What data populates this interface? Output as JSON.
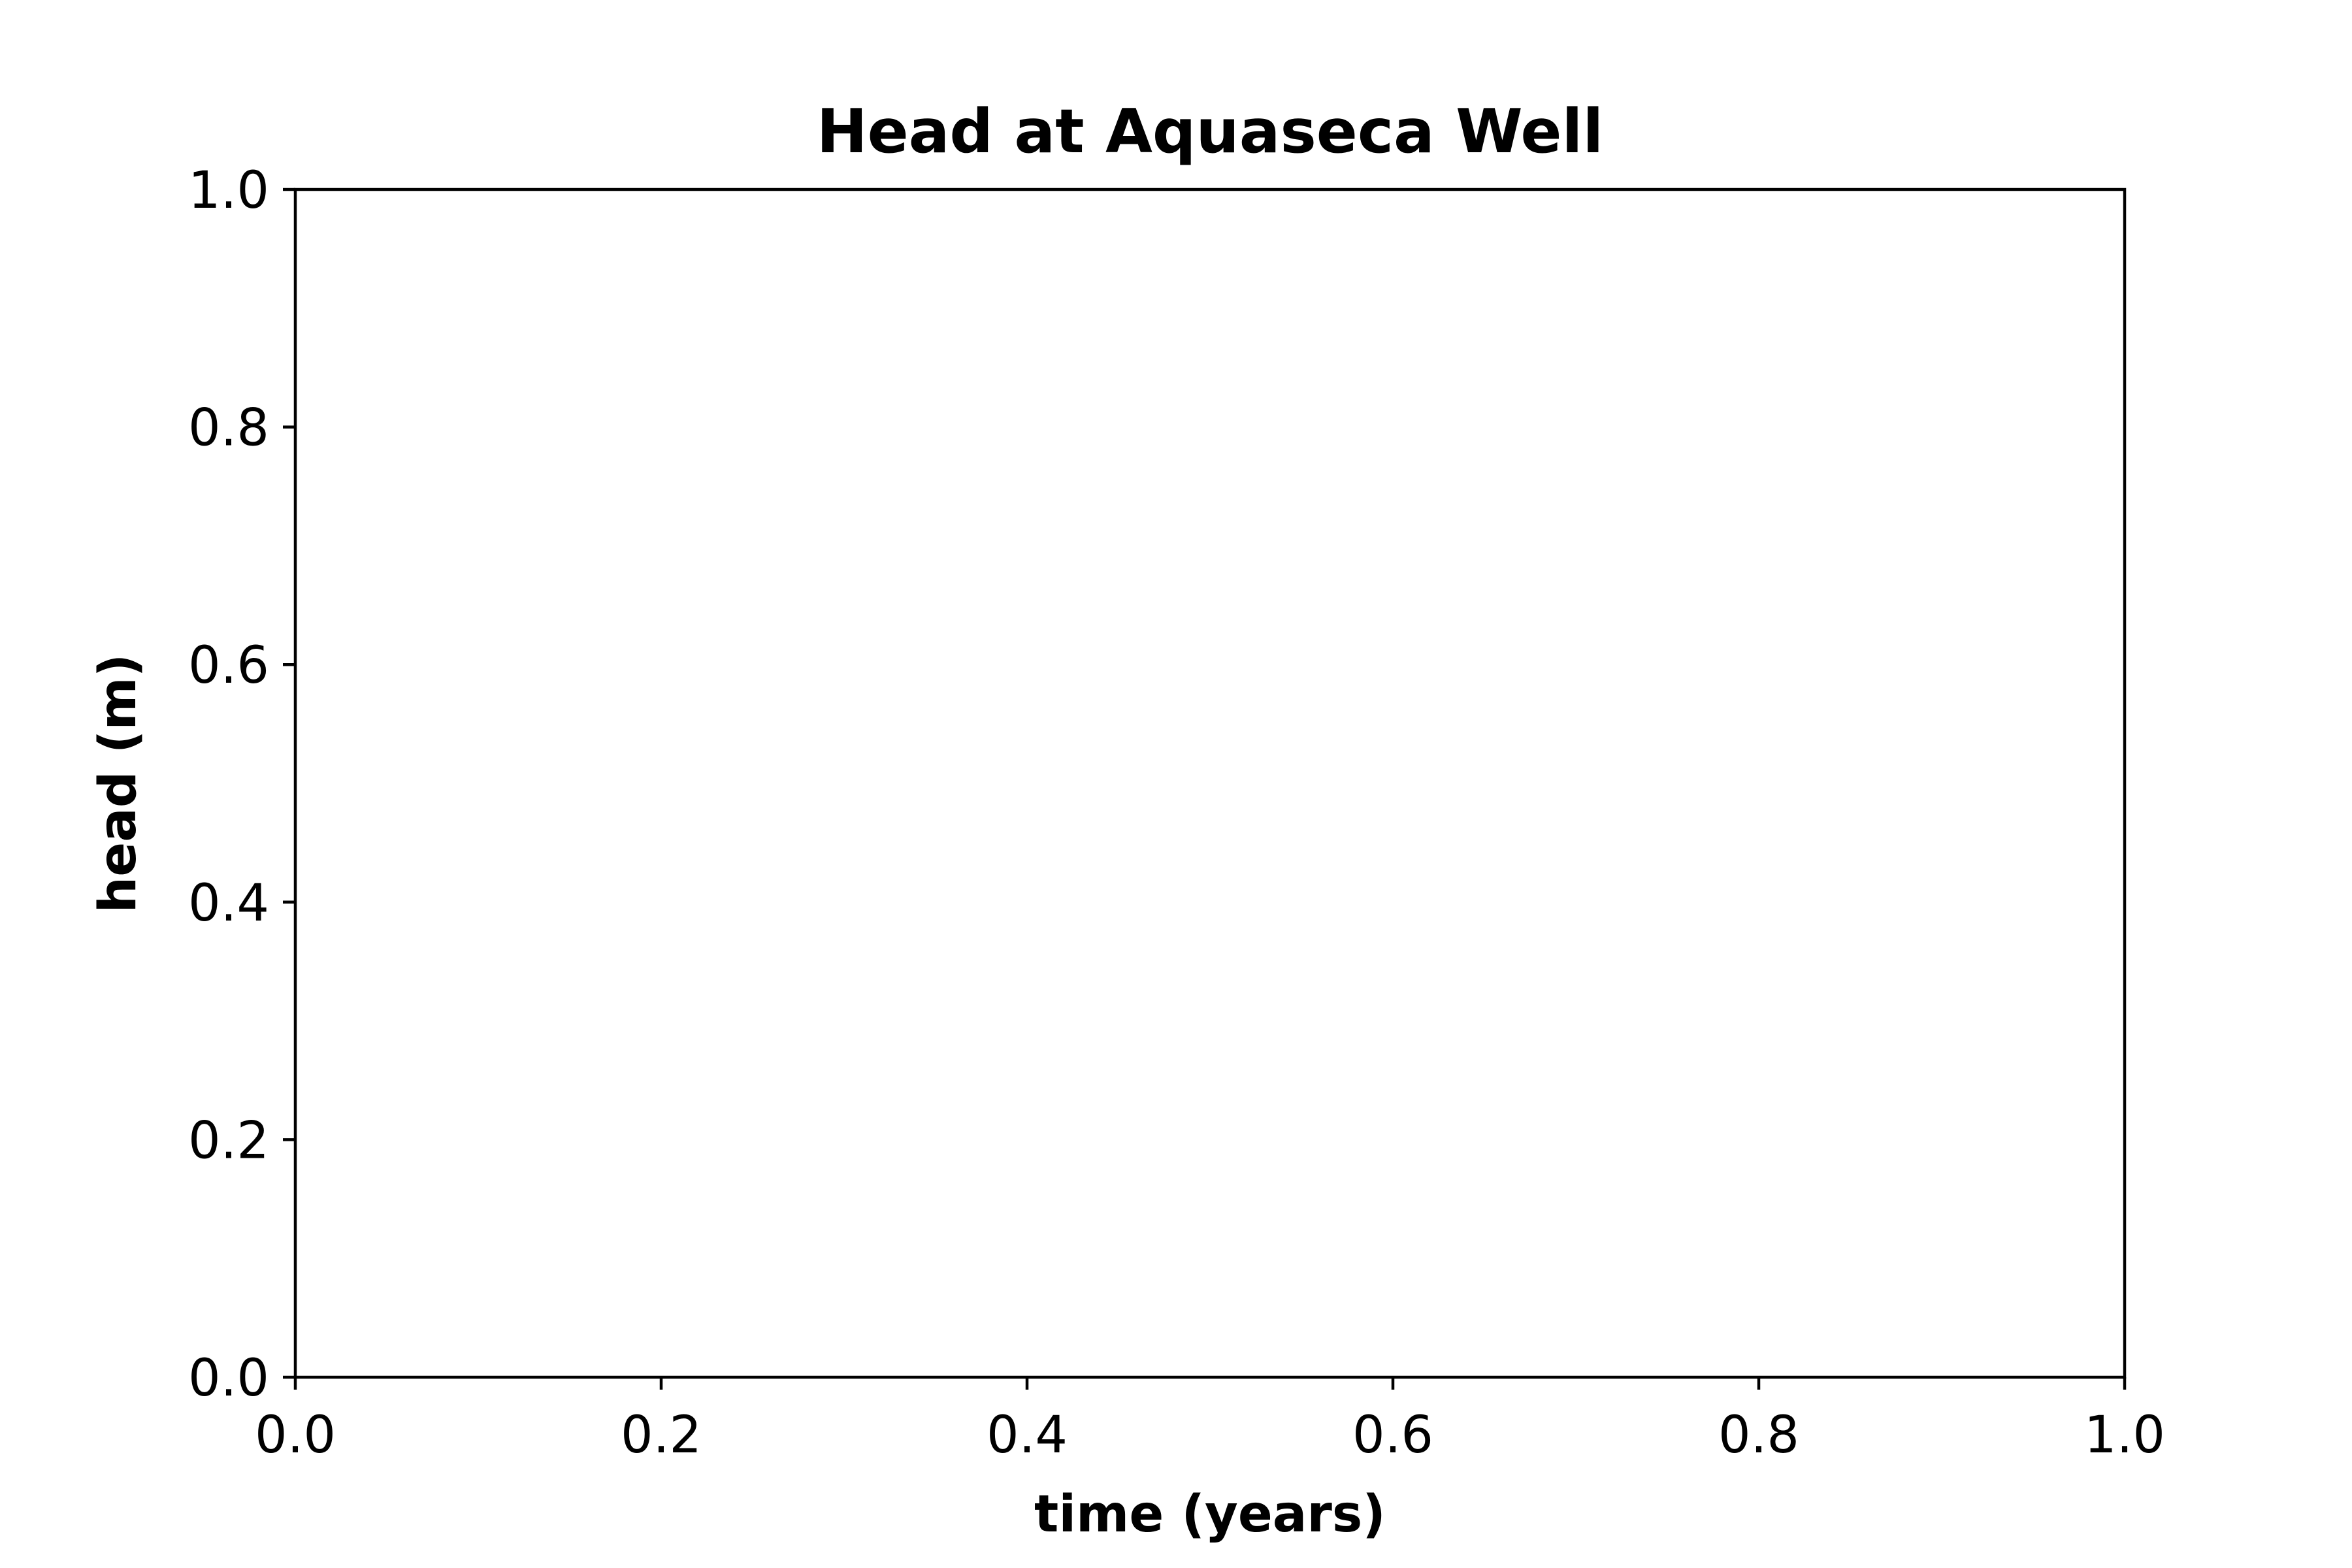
{
  "chart_data": {
    "type": "line",
    "title": "Head at Aquaseca Well",
    "xlabel": "time (years)",
    "ylabel": "head (m)",
    "xlim": [
      0.0,
      1.0
    ],
    "ylim": [
      0.0,
      1.0
    ],
    "xticks": [
      "0.0",
      "0.2",
      "0.4",
      "0.6",
      "0.8",
      "1.0"
    ],
    "yticks": [
      "0.0",
      "0.2",
      "0.4",
      "0.6",
      "0.8",
      "1.0"
    ],
    "series": [],
    "grid": false,
    "legend": "none"
  }
}
